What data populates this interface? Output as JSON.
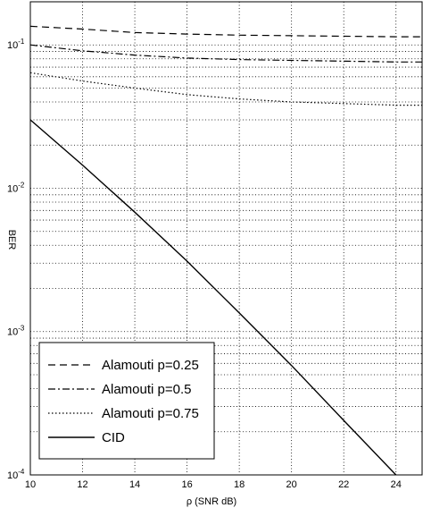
{
  "chart_data": {
    "type": "line",
    "xlabel": "ρ (SNR dB)",
    "ylabel": "BER",
    "xlim": [
      10,
      25
    ],
    "ylim": [
      0.0001,
      0.2
    ],
    "yscale": "log",
    "grid": true,
    "x_ticks": [
      10,
      12,
      14,
      16,
      18,
      20,
      22,
      24
    ],
    "y_ticks": [
      {
        "value": 0.1,
        "base": "10",
        "exp": "-1"
      },
      {
        "value": 0.01,
        "base": "10",
        "exp": "-2"
      },
      {
        "value": 0.001,
        "base": "10",
        "exp": "-3"
      },
      {
        "value": 0.0001,
        "base": "10",
        "exp": "-4"
      }
    ],
    "legend_position": "bottom-left",
    "series": [
      {
        "name": "Alamouti p=0.25",
        "dash": "8,5",
        "width": 1.2,
        "x": [
          10,
          12,
          14,
          16,
          18,
          20,
          22,
          24,
          25
        ],
        "y": [
          0.135,
          0.129,
          0.122,
          0.119,
          0.117,
          0.116,
          0.115,
          0.114,
          0.114
        ]
      },
      {
        "name": "Alamouti p=0.5",
        "dash": "8,3,2,3",
        "width": 1.2,
        "x": [
          10,
          12,
          14,
          16,
          18,
          20,
          22,
          24,
          25
        ],
        "y": [
          0.1,
          0.091,
          0.085,
          0.081,
          0.079,
          0.078,
          0.077,
          0.076,
          0.076
        ]
      },
      {
        "name": "Alamouti p=0.75",
        "dash": "1.5,2.5",
        "width": 1.2,
        "x": [
          10,
          12,
          14,
          16,
          18,
          20,
          22,
          24,
          25
        ],
        "y": [
          0.064,
          0.056,
          0.05,
          0.045,
          0.042,
          0.04,
          0.039,
          0.038,
          0.038
        ]
      },
      {
        "name": "CID",
        "dash": "",
        "width": 1.4,
        "x": [
          10,
          12,
          14,
          16,
          18,
          20,
          22,
          24
        ],
        "y": [
          0.03,
          0.0145,
          0.0068,
          0.0031,
          0.00135,
          0.00058,
          0.00024,
          0.0001
        ]
      }
    ]
  }
}
